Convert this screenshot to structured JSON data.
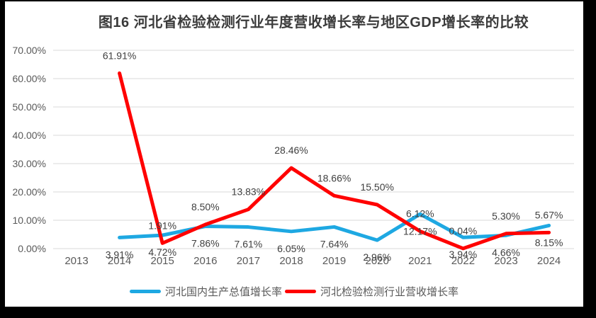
{
  "title": "图16 河北省检验检测行业年度营收增长率与地区GDP增长率的比较",
  "chart_data": {
    "type": "line",
    "categories": [
      "2013",
      "2014",
      "2015",
      "2016",
      "2017",
      "2018",
      "2019",
      "2020",
      "2021",
      "2022",
      "2023",
      "2024"
    ],
    "series": [
      {
        "name": "河北国内生产总值增长率",
        "color": "#1EA8E2",
        "label_position": "below",
        "values": [
          null,
          3.91,
          4.72,
          7.86,
          7.61,
          6.05,
          7.64,
          2.96,
          12.17,
          3.94,
          4.66,
          8.15
        ]
      },
      {
        "name": "河北检验检测行业营收增长率",
        "color": "#FF0000",
        "label_position": "above",
        "values": [
          null,
          61.91,
          1.91,
          8.5,
          13.83,
          28.46,
          18.66,
          15.5,
          6.12,
          0.04,
          5.3,
          5.67
        ]
      }
    ],
    "y_axis": {
      "ticks": [
        "0.00%",
        "10.00%",
        "20.00%",
        "30.00%",
        "40.00%",
        "50.00%",
        "60.00%",
        "70.00%"
      ],
      "min": 0,
      "max": 70
    },
    "grid": true,
    "legend_position": "bottom",
    "data_label_format": "0.00%",
    "colors": {
      "gridline": "#D9D9D9",
      "axis_text": "#595959",
      "data_label_text": "#3F3F3F",
      "title_text": "#3B3B3B",
      "page_background": "#FFFFFF",
      "frame_background": "#000000"
    }
  }
}
